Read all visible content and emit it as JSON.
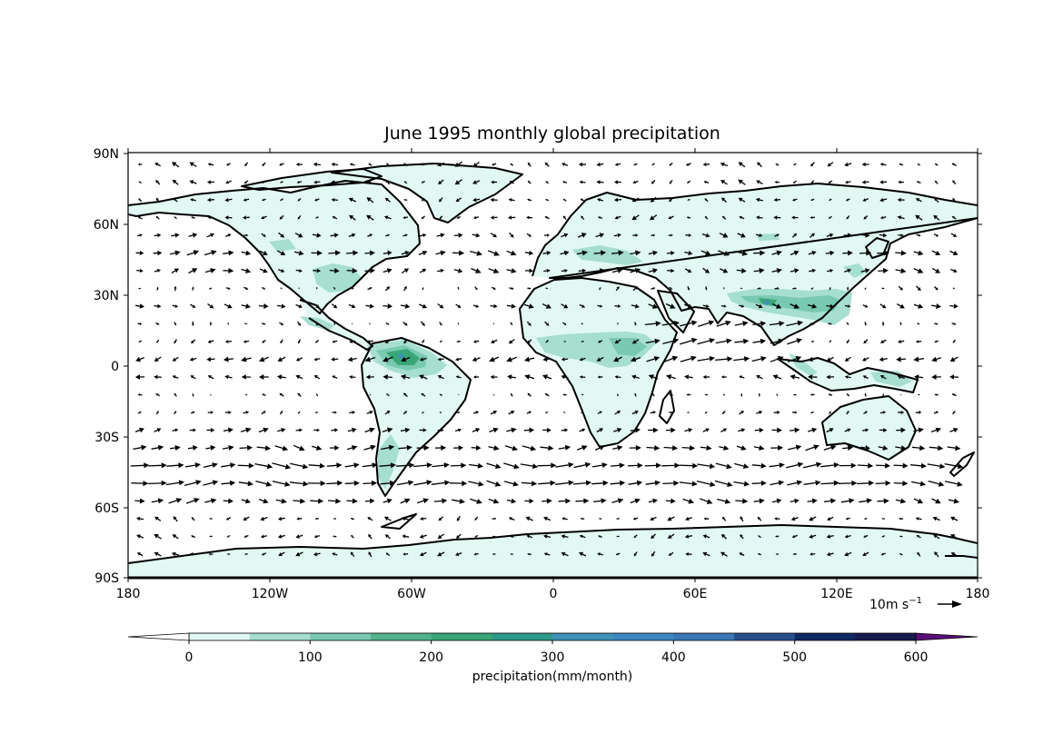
{
  "title": "June 1995 monthly global precipitation",
  "map": {
    "lon_ticks": [
      "180",
      "120W",
      "60W",
      "0",
      "60E",
      "120E",
      "180"
    ],
    "lat_ticks": [
      "90N",
      "60N",
      "30N",
      "0",
      "30S",
      "60S",
      "90S"
    ],
    "extent": {
      "lon": [
        -180,
        180
      ],
      "lat": [
        -90,
        90
      ]
    },
    "projection": "plate-carree",
    "coastlines": true,
    "wind_vectors": true
  },
  "quiver_key": {
    "label": "10m s",
    "superscript": "−1"
  },
  "colorbar": {
    "label": "precipitation(mm/month)",
    "tick_labels": [
      "0",
      "100",
      "200",
      "300",
      "400",
      "500",
      "600"
    ],
    "levels": [
      0,
      50,
      100,
      150,
      200,
      250,
      300,
      350,
      400,
      450,
      500,
      550,
      600
    ],
    "colors": [
      "#e1f8f3",
      "#a6ded0",
      "#79c9b0",
      "#52b38c",
      "#3aa678",
      "#2e9a8a",
      "#3f91b6",
      "#3d86c0",
      "#3b78b6",
      "#28508e",
      "#102963",
      "#171b4f"
    ],
    "extend_low_color": "#ffffff",
    "extend_high_color": "#5a0f78",
    "extend": "both",
    "orientation": "horizontal"
  }
}
